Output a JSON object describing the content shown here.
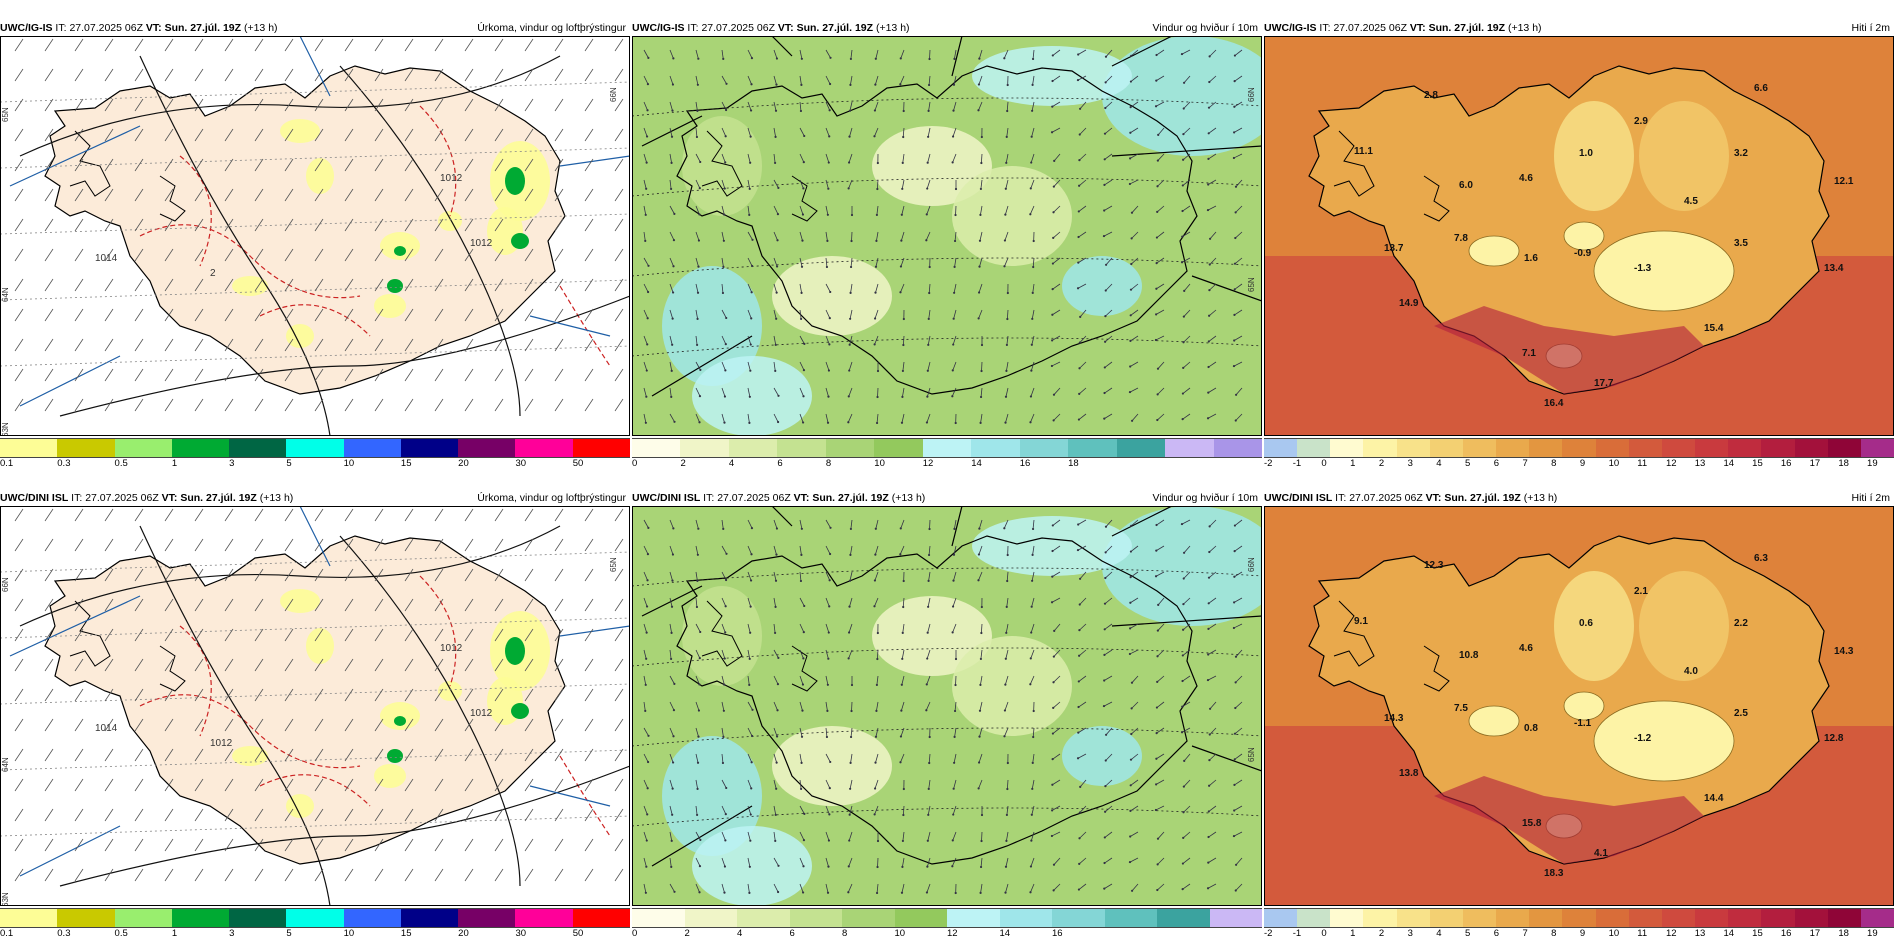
{
  "panels": [
    {
      "model": "UWC/IG-IS",
      "it_label": "IT:",
      "it_value": "27.07.2025 06Z",
      "vt_label": "VT:",
      "vt_value": "Sun. 27.júl. 19Z",
      "lead": "(+13 h)",
      "title": "Úrkoma, vindur og loftþrýstingur",
      "type": "precip",
      "isobars": [
        "1014",
        "1012",
        "1012",
        "2"
      ],
      "lat_labels": [
        "65N",
        "64N",
        "63N",
        "66N"
      ],
      "legend": {
        "colors": [
          "#fdfd96",
          "#c9c900",
          "#99ee6e",
          "#00aa33",
          "#006644",
          "#00ffe8",
          "#3366ff",
          "#000088",
          "#770066",
          "#ff0099",
          "#ff0000"
        ],
        "labels": [
          "0.1",
          "0.3",
          "0.5",
          "1",
          "3",
          "5",
          "10",
          "15",
          "20",
          "30",
          "50"
        ]
      }
    },
    {
      "model": "UWC/IG-IS",
      "it_label": "IT:",
      "it_value": "27.07.2025 06Z",
      "vt_label": "VT:",
      "vt_value": "Sun. 27.júl. 19Z",
      "lead": "(+13 h)",
      "title": "Vindur og hviður í 10m",
      "type": "wind",
      "lat_labels": [
        "66N",
        "65N"
      ],
      "legend": {
        "colors": [
          "#fefde9",
          "#f0f5c8",
          "#dcedac",
          "#c4e291",
          "#a9d476",
          "#93c95d",
          "#bdf3f5",
          "#9fe6ea",
          "#84d6d6",
          "#5fc1bd",
          "#3ba39f",
          "#cbb8f5",
          "#a995e8"
        ],
        "labels": [
          "0",
          "2",
          "4",
          "6",
          "8",
          "10",
          "12",
          "14",
          "16",
          "18"
        ]
      }
    },
    {
      "model": "UWC/IG-IS",
      "it_label": "IT:",
      "it_value": "27.07.2025 06Z",
      "vt_label": "VT:",
      "vt_value": "Sun. 27.júl. 19Z",
      "lead": "(+13 h)",
      "title": "Hiti í 2m",
      "type": "temp",
      "temps": [
        "2.8",
        "6.6",
        "11.1",
        "2.9",
        "1.0",
        "3.2",
        "6.0",
        "4.6",
        "4.5",
        "12.1",
        "7.8",
        "13.7",
        "1.6",
        "-0.9",
        "-1.3",
        "3.5",
        "13.4",
        "14.9",
        "15.4",
        "7.1",
        "17.7",
        "16.4"
      ],
      "legend": {
        "colors": [
          "#a9c8f0",
          "#c9e3c9",
          "#fffbd0",
          "#fdf3a6",
          "#f8e28a",
          "#f3d072",
          "#efbd5e",
          "#e9a94c",
          "#e39640",
          "#de823a",
          "#d96d39",
          "#d35a3c",
          "#cf4a3e",
          "#c93a3e",
          "#c02c3e",
          "#b31e3e",
          "#a3113b",
          "#8f0537",
          "#a52c8a"
        ],
        "labels": [
          "-2",
          "-1",
          "0",
          "1",
          "2",
          "3",
          "4",
          "5",
          "6",
          "7",
          "8",
          "9",
          "10",
          "11",
          "12",
          "13",
          "14",
          "15",
          "16",
          "17",
          "18",
          "19"
        ]
      }
    },
    {
      "model": "UWC/DINI ISL",
      "it_label": "IT:",
      "it_value": "27.07.2025 06Z",
      "vt_label": "VT:",
      "vt_value": "Sun. 27.júl. 19Z",
      "lead": "(+13 h)",
      "title": "Úrkoma, vindur og loftþrýstingur",
      "type": "precip",
      "isobars": [
        "1014",
        "1012",
        "1012",
        "1012"
      ],
      "lat_labels": [
        "66N",
        "64N",
        "63N",
        "65N"
      ],
      "legend": {
        "colors": [
          "#fdfd96",
          "#c9c900",
          "#99ee6e",
          "#00aa33",
          "#006644",
          "#00ffe8",
          "#3366ff",
          "#000088",
          "#770066",
          "#ff0099",
          "#ff0000"
        ],
        "labels": [
          "0.1",
          "0.3",
          "0.5",
          "1",
          "3",
          "5",
          "10",
          "15",
          "20",
          "30",
          "50"
        ]
      }
    },
    {
      "model": "UWC/DINI ISL",
      "it_label": "IT:",
      "it_value": "27.07.2025 06Z",
      "vt_label": "VT:",
      "vt_value": "Sun. 27.júl. 19Z",
      "lead": "(+13 h)",
      "title": "Vindur og hviður í 10m",
      "type": "wind",
      "lat_labels": [
        "66N",
        "65N"
      ],
      "legend": {
        "colors": [
          "#fefde9",
          "#f0f5c8",
          "#dcedac",
          "#c4e291",
          "#a9d476",
          "#93c95d",
          "#bdf3f5",
          "#9fe6ea",
          "#84d6d6",
          "#5fc1bd",
          "#3ba39f",
          "#cbb8f5"
        ],
        "labels": [
          "0",
          "2",
          "4",
          "6",
          "8",
          "10",
          "12",
          "14",
          "16"
        ]
      }
    },
    {
      "model": "UWC/DINI ISL",
      "it_label": "IT:",
      "it_value": "27.07.2025 06Z",
      "vt_label": "VT:",
      "vt_value": "Sun. 27.júl. 19Z",
      "lead": "(+13 h)",
      "title": "Hiti í 2m",
      "type": "temp",
      "temps": [
        "12.3",
        "6.3",
        "9.1",
        "2.1",
        "0.6",
        "2.2",
        "10.8",
        "4.6",
        "4.0",
        "14.3",
        "7.5",
        "14.3",
        "0.8",
        "-1.1",
        "-1.2",
        "2.5",
        "12.8",
        "13.8",
        "14.4",
        "15.8",
        "4.1",
        "18.3"
      ],
      "legend": {
        "colors": [
          "#a9c8f0",
          "#c9e3c9",
          "#fffbd0",
          "#fdf3a6",
          "#f8e28a",
          "#f3d072",
          "#efbd5e",
          "#e9a94c",
          "#e39640",
          "#de823a",
          "#d96d39",
          "#d35a3c",
          "#cf4a3e",
          "#c93a3e",
          "#c02c3e",
          "#b31e3e",
          "#a3113b",
          "#8f0537",
          "#a52c8a"
        ],
        "labels": [
          "-2",
          "-1",
          "0",
          "1",
          "2",
          "3",
          "4",
          "5",
          "6",
          "7",
          "8",
          "9",
          "10",
          "11",
          "12",
          "13",
          "14",
          "15",
          "16",
          "17",
          "18",
          "19"
        ]
      }
    }
  ]
}
